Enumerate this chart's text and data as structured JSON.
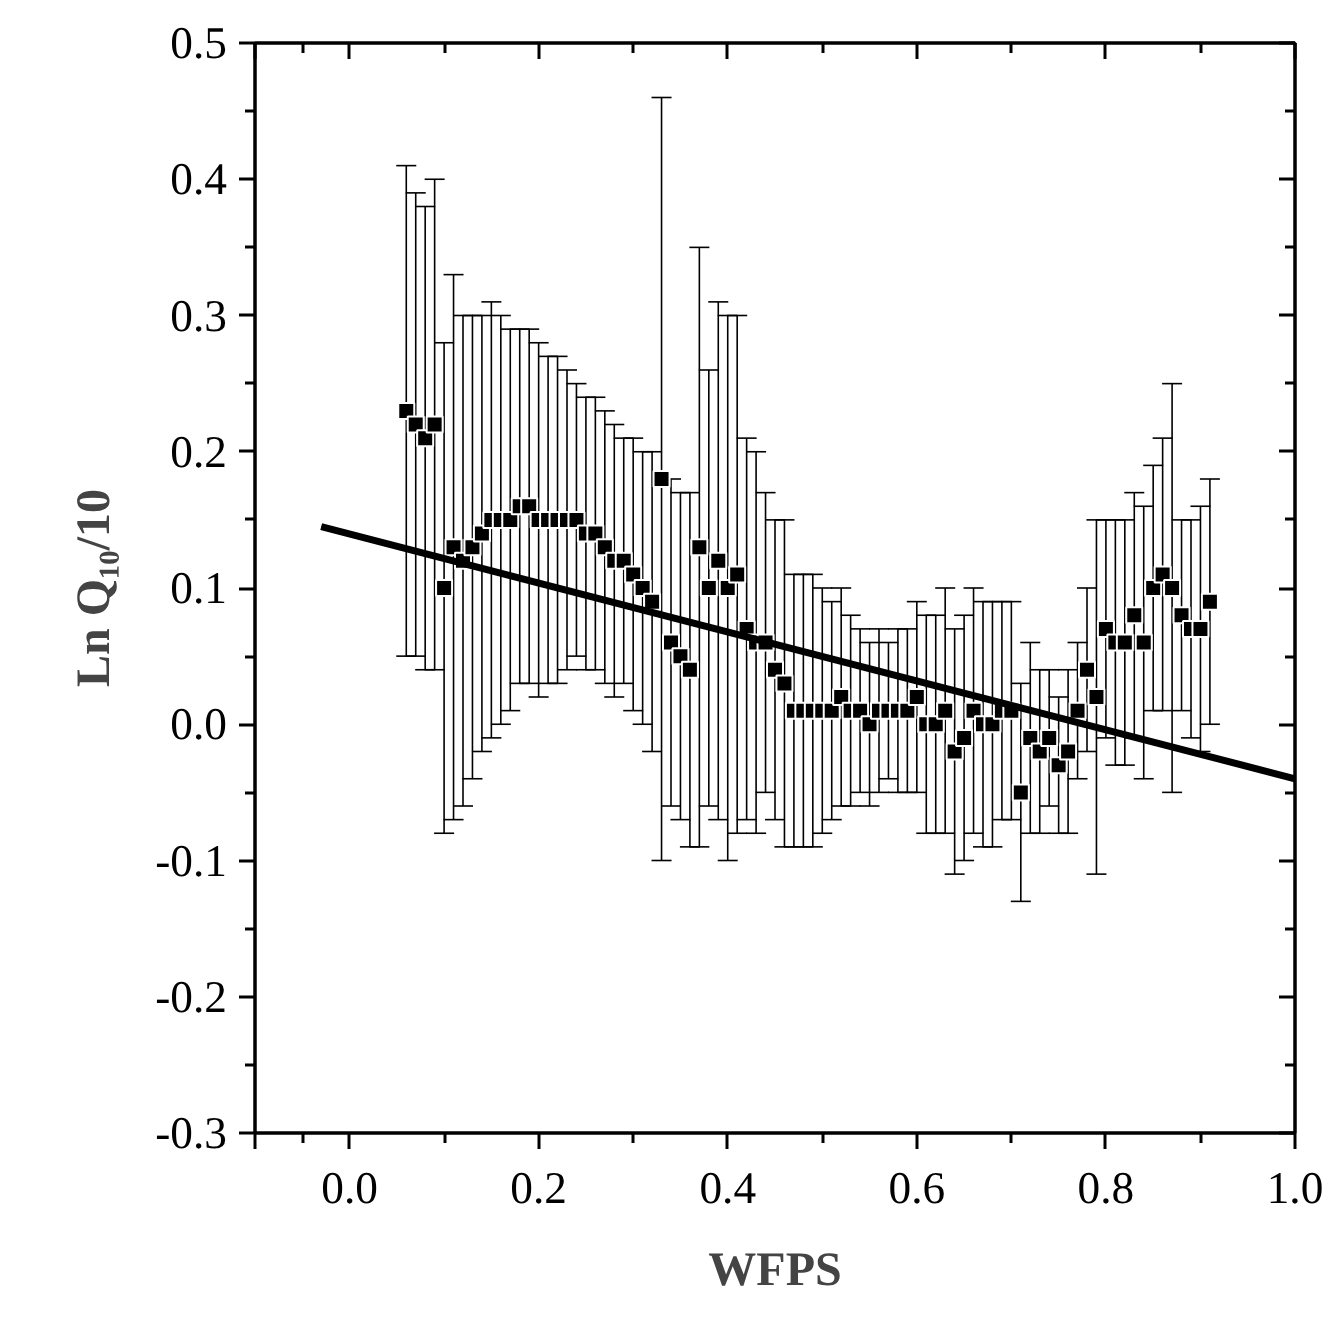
{
  "chart_data": {
    "type": "scatter",
    "xlabel": "WFPS",
    "ylabel": "Ln Q₁₀/10",
    "xlim": [
      -0.1,
      1.0
    ],
    "xticks": [
      {
        "value": -0.1,
        "label": null
      },
      {
        "value": 0,
        "label": "0.0"
      },
      0.2,
      0.4,
      0.6,
      0.8,
      {
        "value": 1,
        "label": "1.0"
      }
    ],
    "ylim": [
      -0.3,
      0.5
    ],
    "yticks": [
      -0.3,
      -0.2,
      -0.1,
      {
        "value": 0,
        "label": "0.0"
      },
      0.1,
      0.2,
      0.3,
      0.4,
      0.5
    ],
    "grid": false,
    "marker": "square",
    "series": [
      {
        "color": "#000000",
        "x": [
          0.06,
          0.07,
          0.08,
          0.09,
          0.1,
          0.11,
          0.12,
          0.13,
          0.14,
          0.15,
          0.16,
          0.17,
          0.18,
          0.19,
          0.2,
          0.21,
          0.22,
          0.23,
          0.24,
          0.25,
          0.26,
          0.27,
          0.28,
          0.29,
          0.3,
          0.31,
          0.32,
          0.33,
          0.34,
          0.35,
          0.36,
          0.37,
          0.38,
          0.39,
          0.4,
          0.41,
          0.42,
          0.43,
          0.44,
          0.45,
          0.46,
          0.47,
          0.48,
          0.49,
          0.5,
          0.51,
          0.52,
          0.53,
          0.54,
          0.55,
          0.56,
          0.57,
          0.58,
          0.59,
          0.6,
          0.61,
          0.62,
          0.63,
          0.64,
          0.65,
          0.66,
          0.67,
          0.68,
          0.69,
          0.7,
          0.71,
          0.72,
          0.73,
          0.74,
          0.75,
          0.76,
          0.77,
          0.78,
          0.79,
          0.8,
          0.81,
          0.82,
          0.83,
          0.84,
          0.85,
          0.86,
          0.87,
          0.88,
          0.89,
          0.9,
          0.91
        ],
        "values": [
          0.23,
          0.22,
          0.21,
          0.22,
          0.1,
          0.13,
          0.12,
          0.13,
          0.14,
          0.15,
          0.15,
          0.15,
          0.16,
          0.16,
          0.15,
          0.15,
          0.15,
          0.15,
          0.15,
          0.14,
          0.14,
          0.13,
          0.12,
          0.12,
          0.11,
          0.1,
          0.09,
          0.18,
          0.06,
          0.05,
          0.04,
          0.13,
          0.1,
          0.12,
          0.1,
          0.11,
          0.07,
          0.06,
          0.06,
          0.04,
          0.03,
          0.01,
          0.01,
          0.01,
          0.01,
          0.01,
          0.02,
          0.01,
          0.01,
          0.0,
          0.01,
          0.01,
          0.01,
          0.01,
          0.02,
          0.0,
          0.0,
          0.01,
          -0.02,
          -0.01,
          0.01,
          0.0,
          0.0,
          0.01,
          0.01,
          -0.05,
          -0.01,
          -0.02,
          -0.01,
          -0.03,
          -0.02,
          0.01,
          0.04,
          0.02,
          0.07,
          0.06,
          0.06,
          0.08,
          0.06,
          0.1,
          0.11,
          0.1,
          0.08,
          0.07,
          0.07,
          0.09
        ],
        "errors": [
          0.18,
          0.17,
          0.17,
          0.18,
          0.18,
          0.2,
          0.18,
          0.17,
          0.16,
          0.16,
          0.15,
          0.14,
          0.13,
          0.13,
          0.13,
          0.12,
          0.12,
          0.11,
          0.1,
          0.1,
          0.1,
          0.1,
          0.1,
          0.09,
          0.1,
          0.1,
          0.11,
          0.28,
          0.12,
          0.12,
          0.13,
          0.22,
          0.16,
          0.19,
          0.2,
          0.19,
          0.14,
          0.14,
          0.11,
          0.11,
          0.12,
          0.1,
          0.1,
          0.1,
          0.09,
          0.08,
          0.08,
          0.07,
          0.06,
          0.06,
          0.06,
          0.05,
          0.06,
          0.06,
          0.07,
          0.08,
          0.08,
          0.09,
          0.09,
          0.09,
          0.09,
          0.09,
          0.09,
          0.08,
          0.08,
          0.08,
          0.07,
          0.06,
          0.05,
          0.05,
          0.06,
          0.05,
          0.06,
          0.13,
          0.08,
          0.09,
          0.09,
          0.09,
          0.1,
          0.09,
          0.1,
          0.15,
          0.07,
          0.08,
          0.09,
          0.09
        ]
      },
      {
        "type": "line",
        "color": "#000000",
        "marker": "none",
        "line_style": "solid",
        "x": [
          -0.03,
          1.0
        ],
        "values": [
          0.145,
          -0.04
        ]
      }
    ]
  }
}
